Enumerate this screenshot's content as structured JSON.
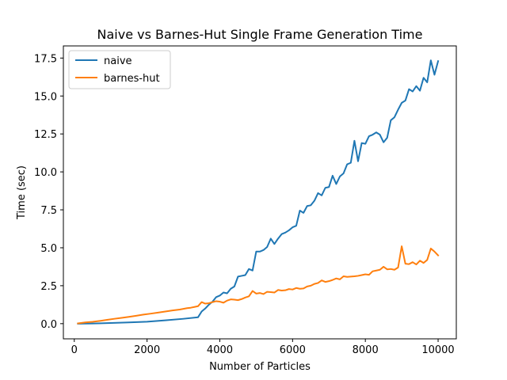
{
  "chart_data": {
    "type": "line",
    "title": "Naive vs Barnes-Hut Single Frame Generation Time",
    "xlabel": "Number of Particles",
    "ylabel": "Time (sec)",
    "xlim": [
      -300,
      10500
    ],
    "ylim": [
      -1.0,
      18.3
    ],
    "xticks": [
      0,
      2000,
      4000,
      6000,
      8000,
      10000
    ],
    "yticks": [
      0.0,
      2.5,
      5.0,
      7.5,
      10.0,
      12.5,
      15.0,
      17.5
    ],
    "xtick_labels": [
      "0",
      "2000",
      "4000",
      "6000",
      "8000",
      "10000"
    ],
    "ytick_labels": [
      "0.0",
      "2.5",
      "5.0",
      "7.5",
      "10.0",
      "12.5",
      "15.0",
      "17.5"
    ],
    "grid": false,
    "legend_position": "top-left",
    "series": [
      {
        "name": "naive",
        "color": "#1f77b4",
        "points": [
          [
            100,
            0.0
          ],
          [
            500,
            0.01
          ],
          [
            1000,
            0.04
          ],
          [
            1500,
            0.08
          ],
          [
            2000,
            0.13
          ],
          [
            2500,
            0.22
          ],
          [
            3000,
            0.32
          ],
          [
            3400,
            0.42
          ],
          [
            3500,
            0.8
          ],
          [
            3600,
            1.0
          ],
          [
            3700,
            1.25
          ],
          [
            3800,
            1.45
          ],
          [
            3900,
            1.75
          ],
          [
            4000,
            1.85
          ],
          [
            4100,
            2.05
          ],
          [
            4200,
            2.0
          ],
          [
            4300,
            2.3
          ],
          [
            4400,
            2.45
          ],
          [
            4500,
            3.1
          ],
          [
            4600,
            3.15
          ],
          [
            4700,
            3.2
          ],
          [
            4800,
            3.6
          ],
          [
            4900,
            3.5
          ],
          [
            5000,
            4.75
          ],
          [
            5100,
            4.75
          ],
          [
            5200,
            4.85
          ],
          [
            5300,
            5.05
          ],
          [
            5400,
            5.6
          ],
          [
            5500,
            5.25
          ],
          [
            5600,
            5.6
          ],
          [
            5700,
            5.9
          ],
          [
            5800,
            6.0
          ],
          [
            5900,
            6.15
          ],
          [
            6000,
            6.35
          ],
          [
            6100,
            6.45
          ],
          [
            6200,
            7.45
          ],
          [
            6300,
            7.3
          ],
          [
            6400,
            7.75
          ],
          [
            6500,
            7.8
          ],
          [
            6600,
            8.1
          ],
          [
            6700,
            8.6
          ],
          [
            6800,
            8.45
          ],
          [
            6900,
            8.95
          ],
          [
            7000,
            9.0
          ],
          [
            7100,
            9.75
          ],
          [
            7200,
            9.2
          ],
          [
            7300,
            9.7
          ],
          [
            7400,
            9.9
          ],
          [
            7500,
            10.5
          ],
          [
            7600,
            10.6
          ],
          [
            7700,
            12.05
          ],
          [
            7800,
            10.7
          ],
          [
            7900,
            11.9
          ],
          [
            8000,
            11.85
          ],
          [
            8100,
            12.35
          ],
          [
            8200,
            12.45
          ],
          [
            8300,
            12.6
          ],
          [
            8400,
            12.45
          ],
          [
            8500,
            11.95
          ],
          [
            8600,
            12.25
          ],
          [
            8700,
            13.4
          ],
          [
            8800,
            13.6
          ],
          [
            8900,
            14.1
          ],
          [
            9000,
            14.55
          ],
          [
            9100,
            14.7
          ],
          [
            9200,
            15.45
          ],
          [
            9300,
            15.3
          ],
          [
            9400,
            15.65
          ],
          [
            9500,
            15.35
          ],
          [
            9600,
            16.2
          ],
          [
            9700,
            15.9
          ],
          [
            9800,
            17.35
          ],
          [
            9900,
            16.4
          ],
          [
            10000,
            17.3
          ]
        ]
      },
      {
        "name": "barnes-hut",
        "color": "#ff7f0e",
        "points": [
          [
            100,
            0.02
          ],
          [
            300,
            0.08
          ],
          [
            500,
            0.12
          ],
          [
            700,
            0.18
          ],
          [
            900,
            0.25
          ],
          [
            1100,
            0.32
          ],
          [
            1300,
            0.38
          ],
          [
            1500,
            0.45
          ],
          [
            1700,
            0.52
          ],
          [
            1900,
            0.6
          ],
          [
            2100,
            0.66
          ],
          [
            2300,
            0.73
          ],
          [
            2500,
            0.8
          ],
          [
            2700,
            0.87
          ],
          [
            2900,
            0.93
          ],
          [
            3100,
            1.02
          ],
          [
            3200,
            1.05
          ],
          [
            3300,
            1.1
          ],
          [
            3400,
            1.15
          ],
          [
            3500,
            1.42
          ],
          [
            3600,
            1.32
          ],
          [
            3700,
            1.35
          ],
          [
            3800,
            1.42
          ],
          [
            3900,
            1.48
          ],
          [
            4000,
            1.45
          ],
          [
            4100,
            1.38
          ],
          [
            4200,
            1.52
          ],
          [
            4300,
            1.6
          ],
          [
            4400,
            1.58
          ],
          [
            4500,
            1.55
          ],
          [
            4600,
            1.62
          ],
          [
            4700,
            1.72
          ],
          [
            4800,
            1.8
          ],
          [
            4900,
            2.15
          ],
          [
            5000,
            1.98
          ],
          [
            5100,
            2.02
          ],
          [
            5200,
            1.95
          ],
          [
            5300,
            2.1
          ],
          [
            5400,
            2.08
          ],
          [
            5500,
            2.05
          ],
          [
            5600,
            2.22
          ],
          [
            5700,
            2.18
          ],
          [
            5800,
            2.2
          ],
          [
            5900,
            2.28
          ],
          [
            6000,
            2.25
          ],
          [
            6100,
            2.35
          ],
          [
            6200,
            2.3
          ],
          [
            6300,
            2.32
          ],
          [
            6400,
            2.45
          ],
          [
            6500,
            2.5
          ],
          [
            6600,
            2.62
          ],
          [
            6700,
            2.68
          ],
          [
            6800,
            2.85
          ],
          [
            6900,
            2.75
          ],
          [
            7000,
            2.8
          ],
          [
            7100,
            2.88
          ],
          [
            7200,
            2.98
          ],
          [
            7300,
            2.92
          ],
          [
            7400,
            3.12
          ],
          [
            7500,
            3.08
          ],
          [
            7600,
            3.1
          ],
          [
            7700,
            3.12
          ],
          [
            7800,
            3.15
          ],
          [
            7900,
            3.2
          ],
          [
            8000,
            3.25
          ],
          [
            8100,
            3.22
          ],
          [
            8200,
            3.45
          ],
          [
            8300,
            3.5
          ],
          [
            8400,
            3.55
          ],
          [
            8500,
            3.75
          ],
          [
            8600,
            3.58
          ],
          [
            8700,
            3.6
          ],
          [
            8800,
            3.55
          ],
          [
            8900,
            3.7
          ],
          [
            9000,
            5.1
          ],
          [
            9100,
            3.95
          ],
          [
            9200,
            3.92
          ],
          [
            9300,
            4.05
          ],
          [
            9400,
            3.9
          ],
          [
            9500,
            4.15
          ],
          [
            9600,
            4.0
          ],
          [
            9700,
            4.2
          ],
          [
            9800,
            4.95
          ],
          [
            9900,
            4.75
          ],
          [
            10000,
            4.5
          ]
        ]
      }
    ]
  }
}
